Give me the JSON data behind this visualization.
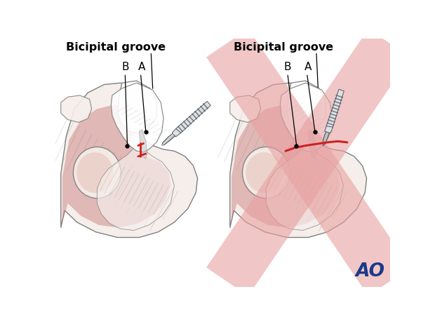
{
  "bg_color": "#ffffff",
  "title_text": "Bicipital groove",
  "label_A": "A",
  "label_B": "B",
  "red_color": "#cc2222",
  "x_color": "#e8a0a0",
  "ao_color": "#1a3a8a",
  "flesh_light": "#ede0d8",
  "flesh_pale": "#f5eeea",
  "flesh_mid": "#dbbcb0",
  "muscle_red": "#c87878",
  "muscle_light": "#dba090",
  "gray_light": "#e0e0e0",
  "gray_mid": "#c0c0c0",
  "gray_dark": "#707070",
  "gray_darkest": "#404040",
  "scalpel_body": "#b8bec8",
  "scalpel_dark": "#505868",
  "scalpel_light": "#d8dce8",
  "outline_color": "#909090",
  "line_color": "#808080"
}
